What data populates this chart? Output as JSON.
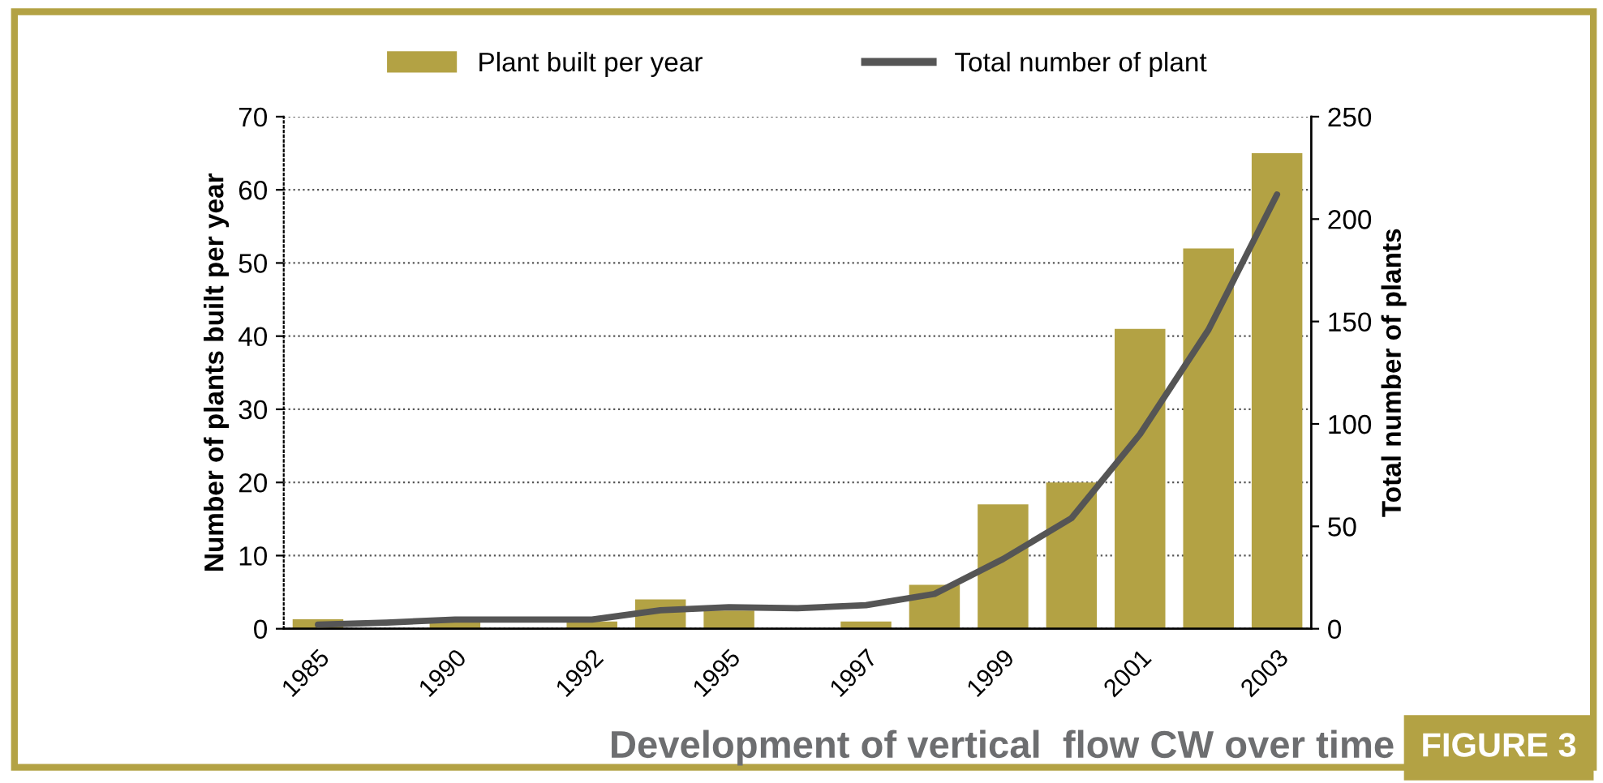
{
  "chart_data": {
    "type": "bar",
    "title": "Development of vertical  flow CW over time",
    "annotations": [
      "FIGURE 3"
    ],
    "ylabel": "Number of plants built per year",
    "y2label": "Total number of plants",
    "categories": [
      "1985",
      null,
      "1990",
      null,
      "1992",
      null,
      "1995",
      null,
      "1997",
      null,
      "1999",
      null,
      "2001",
      null,
      "2003"
    ],
    "series": [
      {
        "name": "Plant built per year",
        "color": "#b3a244",
        "values": [
          1.3,
          null,
          1,
          0,
          1,
          4,
          2.5,
          0,
          1,
          6,
          17,
          20,
          41,
          52,
          65
        ]
      },
      {
        "name": "Total number of plant",
        "type": "line",
        "axis": "y2",
        "color": "#555555",
        "values": [
          2,
          3,
          4.5,
          4.5,
          4.5,
          9,
          10.5,
          10,
          11.5,
          17,
          34,
          54,
          95,
          146,
          212
        ]
      }
    ],
    "ylim": [
      0,
      70
    ],
    "yticks": [
      0,
      10,
      20,
      30,
      40,
      50,
      60,
      70
    ],
    "y2lim": [
      0,
      250
    ],
    "y2ticks": [
      0,
      50,
      100,
      150,
      200,
      250
    ],
    "grid": "y",
    "legend": "top",
    "marker": "none",
    "line_style": "solid"
  }
}
